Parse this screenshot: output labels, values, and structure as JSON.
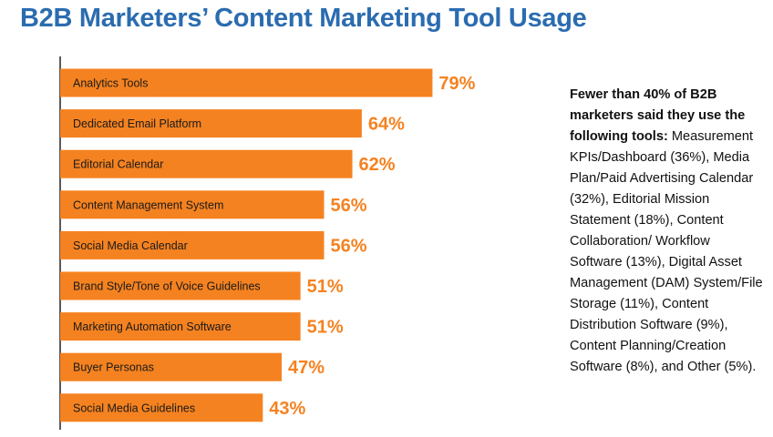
{
  "colors": {
    "title": "#2b6cb0",
    "bar": "#f58220",
    "value_text": "#f58220",
    "axis": "#222222"
  },
  "side_note": {
    "lead": "Fewer than 40% of B2B marketers said they use the following tools:",
    "body": "Measurement KPIs/Dashboard (36%), Media Plan/Paid Advertising Calendar (32%), Editorial Mission Statement (18%), Content Collaboration/ Workflow Software (13%), Digital Asset Management (DAM) System/File Storage (11%), Content Distribution Software (9%), Content Planning/Creation Software (8%), and Other (5%)."
  },
  "chart_data": {
    "type": "bar",
    "orientation": "horizontal",
    "title": "B2B Marketers’ Content Marketing Tool Usage",
    "xlim": [
      0,
      100
    ],
    "grid": false,
    "categories": [
      "Analytics Tools",
      "Dedicated Email Platform",
      "Editorial Calendar",
      "Content Management System",
      "Social Media Calendar",
      "Brand Style/Tone of Voice Guidelines",
      "Marketing Automation Software",
      "Buyer Personas",
      "Social Media Guidelines"
    ],
    "values": [
      79,
      64,
      62,
      56,
      56,
      51,
      51,
      47,
      43
    ],
    "value_labels": [
      "79%",
      "64%",
      "62%",
      "56%",
      "56%",
      "51%",
      "51%",
      "47%",
      "43%"
    ]
  }
}
